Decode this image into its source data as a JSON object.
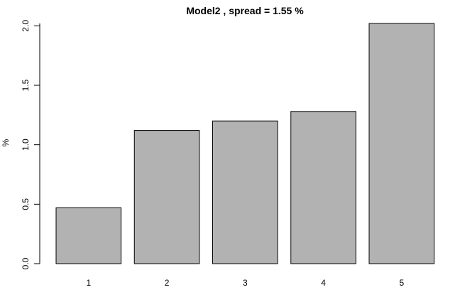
{
  "chart_data": {
    "type": "bar",
    "title": "Model2 , spread = 1.55 %",
    "xlabel": "",
    "ylabel": "%",
    "categories": [
      "1",
      "2",
      "3",
      "4",
      "5"
    ],
    "values": [
      0.47,
      1.12,
      1.2,
      1.28,
      2.02
    ],
    "ylim": [
      0,
      2.02
    ],
    "yticks": [
      "0.0",
      "0.5",
      "1.0",
      "1.5",
      "2.0"
    ],
    "bar_color": "#b2b2b2",
    "bar_border_color": "#000000",
    "grid": false,
    "legend": "none"
  }
}
